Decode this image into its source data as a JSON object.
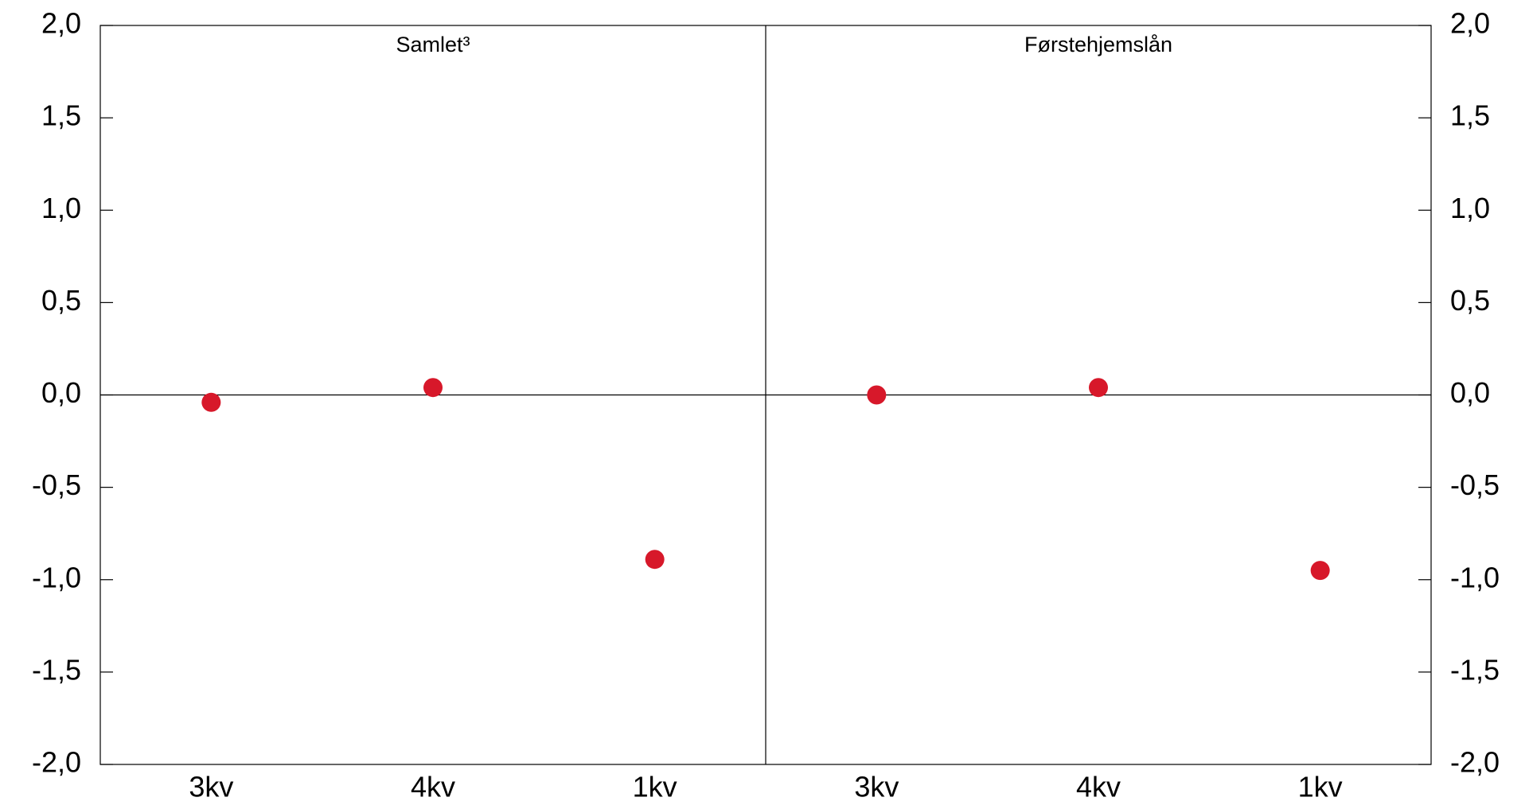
{
  "chart_data": {
    "type": "dot",
    "color": "#d7182a",
    "panels": [
      {
        "title": "Samlet³",
        "categories": [
          "3kv",
          "4kv",
          "1kv"
        ],
        "values": [
          -0.04,
          0.04,
          -0.89
        ]
      },
      {
        "title": "Førstehjemslån",
        "categories": [
          "3kv",
          "4kv",
          "1kv"
        ],
        "values": [
          0.0,
          0.04,
          -0.95
        ]
      }
    ],
    "ylim": [
      -2.0,
      2.0
    ],
    "yticks": [
      {
        "value": -2.0,
        "label": "-2,0"
      },
      {
        "value": -1.5,
        "label": "-1,5"
      },
      {
        "value": -1.0,
        "label": "-1,0"
      },
      {
        "value": -0.5,
        "label": "-0,5"
      },
      {
        "value": 0.0,
        "label": "0,0"
      },
      {
        "value": 0.5,
        "label": "0,5"
      },
      {
        "value": 1.0,
        "label": "1,0"
      },
      {
        "value": 1.5,
        "label": "1,5"
      },
      {
        "value": 2.0,
        "label": "2,0"
      }
    ],
    "y2lim": [
      -2.0,
      2.0
    ],
    "y2ticks": [
      {
        "value": -2.0,
        "label": "-2,0"
      },
      {
        "value": -1.5,
        "label": "-1,5"
      },
      {
        "value": -1.0,
        "label": "-1,0"
      },
      {
        "value": -0.5,
        "label": "-0,5"
      },
      {
        "value": 0.0,
        "label": "0,0"
      },
      {
        "value": 0.5,
        "label": "0,5"
      },
      {
        "value": 1.0,
        "label": "1,0"
      },
      {
        "value": 1.5,
        "label": "1,5"
      },
      {
        "value": 2.0,
        "label": "2,0"
      }
    ]
  }
}
